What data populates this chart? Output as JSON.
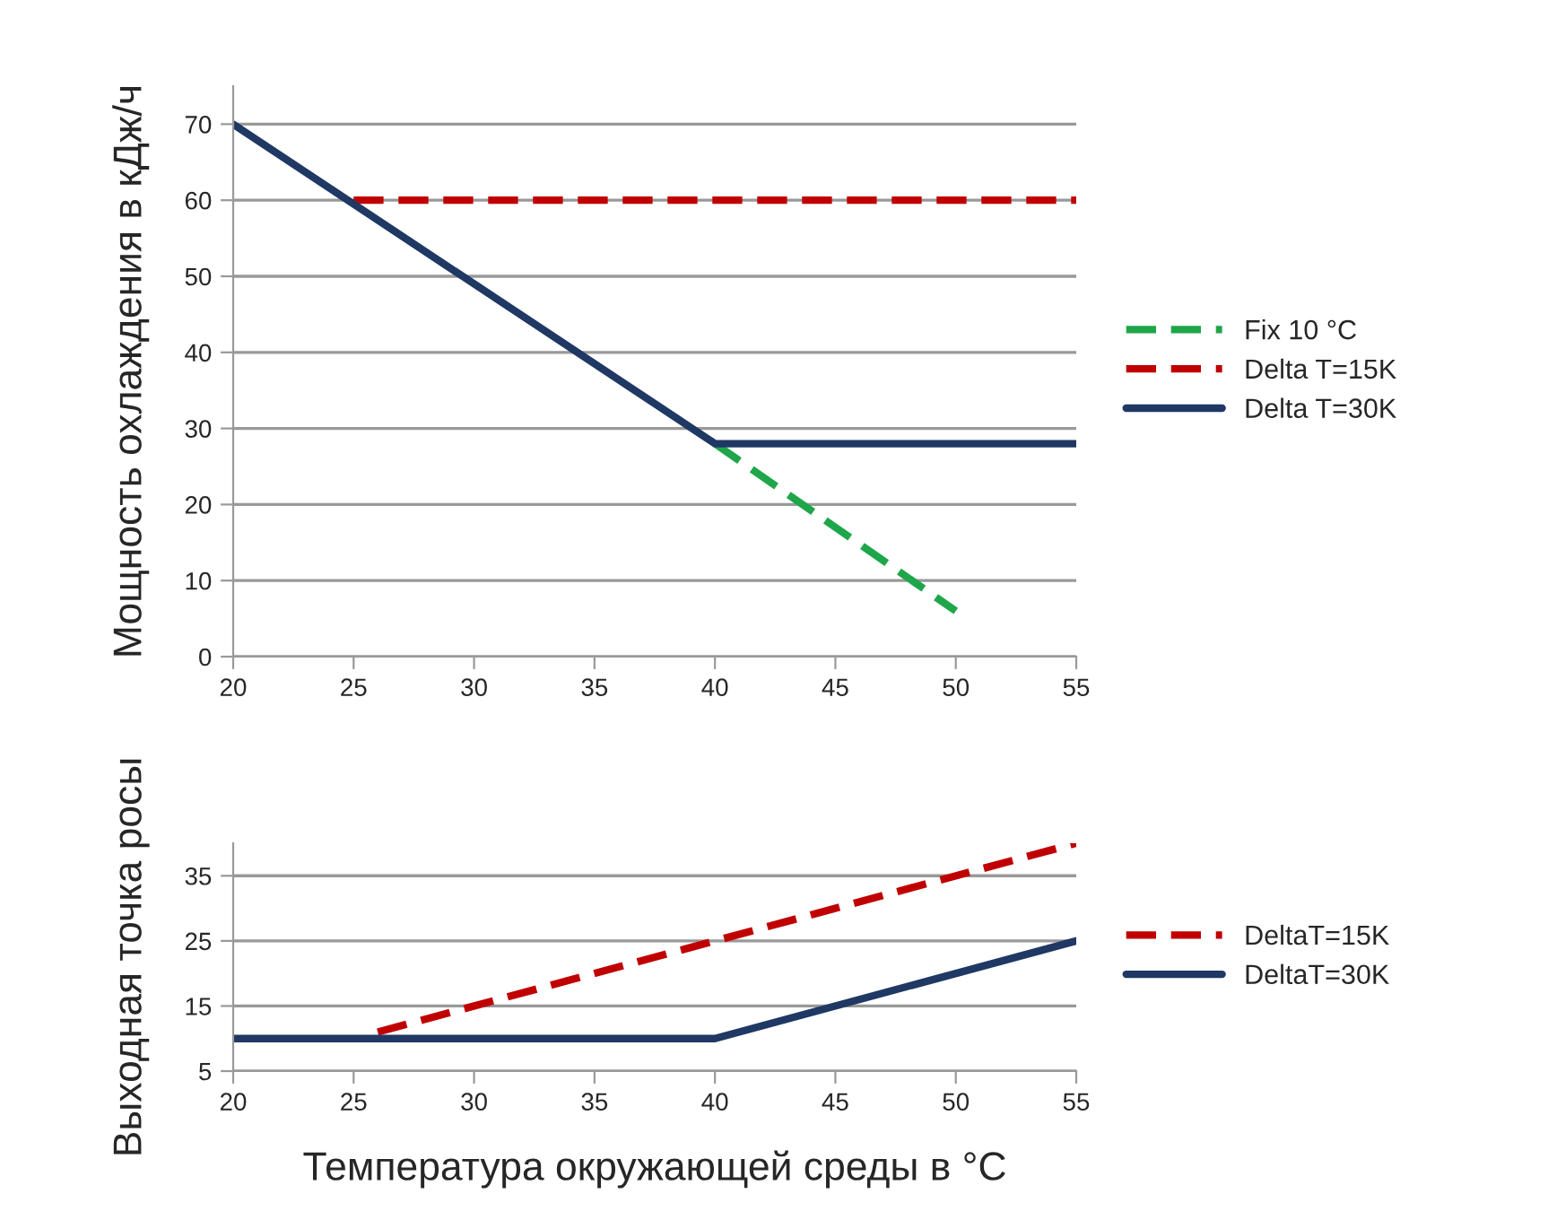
{
  "chart_data": [
    {
      "type": "line",
      "ylabel": "Мощность охлаждения в кДж/ч",
      "xlim": [
        20,
        55
      ],
      "xticks": [
        20,
        25,
        30,
        35,
        40,
        45,
        50,
        55
      ],
      "ylim": [
        0,
        75
      ],
      "yticks": [
        0,
        10,
        20,
        30,
        40,
        50,
        60,
        70
      ],
      "grid": "y",
      "legend": "right",
      "line_style": "solid",
      "series": [
        {
          "name": "Fix 10 °C",
          "color": "#1fa64a",
          "line_style": "dashed",
          "x": [
            40,
            50
          ],
          "values": [
            28,
            6
          ]
        },
        {
          "name": "Delta T=15K",
          "color": "#c00000",
          "line_style": "dashed",
          "x": [
            25,
            55
          ],
          "values": [
            60,
            60
          ]
        },
        {
          "name": "Delta T=30K",
          "color": "#1f3864",
          "x": [
            20,
            40,
            55
          ],
          "values": [
            70,
            28,
            28
          ]
        }
      ]
    },
    {
      "type": "line",
      "xlabel": "Температура окружающей среды в °C",
      "ylabel": "Выходная точка росы",
      "xlim": [
        20,
        55
      ],
      "xticks": [
        20,
        25,
        30,
        35,
        40,
        45,
        50,
        55
      ],
      "ylim": [
        5,
        40
      ],
      "yticks": [
        5,
        15,
        25,
        35
      ],
      "grid": "y",
      "legend": "right",
      "line_style": "solid",
      "series": [
        {
          "name": "DeltaT=15K",
          "color": "#c00000",
          "line_style": "dashed",
          "x": [
            26,
            55
          ],
          "values": [
            11,
            40
          ]
        },
        {
          "name": "DeltaT=30K",
          "color": "#1f3864",
          "x": [
            20,
            40,
            55
          ],
          "values": [
            10,
            10,
            25
          ]
        }
      ]
    }
  ]
}
